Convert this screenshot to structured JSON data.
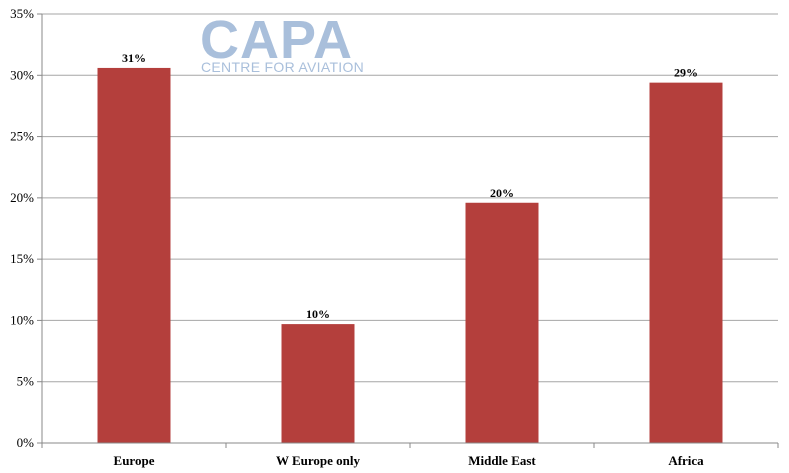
{
  "watermark": {
    "brand": "CAPA",
    "tagline": "CENTRE FOR AVIATION",
    "color": "#a9bfdb"
  },
  "chart_data": {
    "type": "bar",
    "title": "",
    "xlabel": "",
    "ylabel": "",
    "categories": [
      "Europe",
      "W Europe only",
      "Middle East",
      "Africa"
    ],
    "values": [
      30.6,
      9.7,
      19.6,
      29.4
    ],
    "data_labels": [
      "31%",
      "10%",
      "20%",
      "29%"
    ],
    "ylim": [
      0,
      35
    ],
    "yticks": [
      0,
      5,
      10,
      15,
      20,
      25,
      30,
      35
    ],
    "ytick_labels": [
      "0%",
      "5%",
      "10%",
      "15%",
      "20%",
      "25%",
      "30%",
      "35%"
    ],
    "grid": true,
    "legend": "none",
    "bar_color": "#b43f3c"
  }
}
